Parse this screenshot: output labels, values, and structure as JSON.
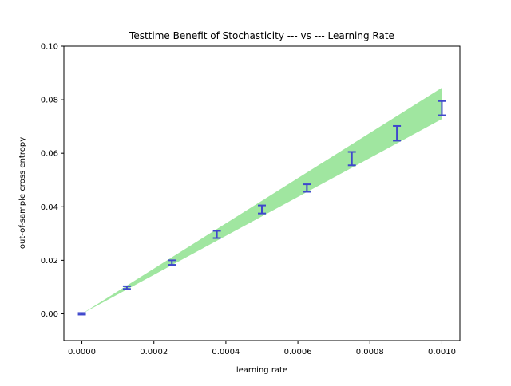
{
  "chart_data": {
    "type": "line",
    "title": "Testtime Benefit of Stochasticity --- vs --- Learning Rate",
    "xlabel": "learning rate",
    "ylabel": "out-of-sample cross entropy",
    "xlim": [
      -5e-05,
      0.00105
    ],
    "ylim": [
      -0.01,
      0.1
    ],
    "xticks": [
      0.0,
      0.0002,
      0.0004,
      0.0006,
      0.0008,
      0.001
    ],
    "xtick_labels": [
      "0.0000",
      "0.0002",
      "0.0004",
      "0.0006",
      "0.0008",
      "0.0010"
    ],
    "yticks": [
      0.0,
      0.02,
      0.04,
      0.06,
      0.08,
      0.1
    ],
    "ytick_labels": [
      "0.00",
      "0.02",
      "0.04",
      "0.06",
      "0.08",
      "0.10"
    ],
    "band": {
      "x": [
        0.0,
        0.001
      ],
      "lower": [
        0.0,
        0.0728
      ],
      "upper": [
        0.0,
        0.0845
      ],
      "color": "#a0e6a0"
    },
    "errorbars": {
      "color": "#3f48cc",
      "x": [
        0.0,
        0.000125,
        0.00025,
        0.000375,
        0.0005,
        0.000625,
        0.00075,
        0.000875,
        0.001
      ],
      "low": [
        -0.0003,
        0.0093,
        0.0183,
        0.0283,
        0.0375,
        0.0456,
        0.0555,
        0.0647,
        0.0742
      ],
      "high": [
        0.0003,
        0.0103,
        0.02,
        0.031,
        0.0405,
        0.0484,
        0.0605,
        0.0702,
        0.0795
      ]
    },
    "grid": false,
    "legend": "none"
  }
}
